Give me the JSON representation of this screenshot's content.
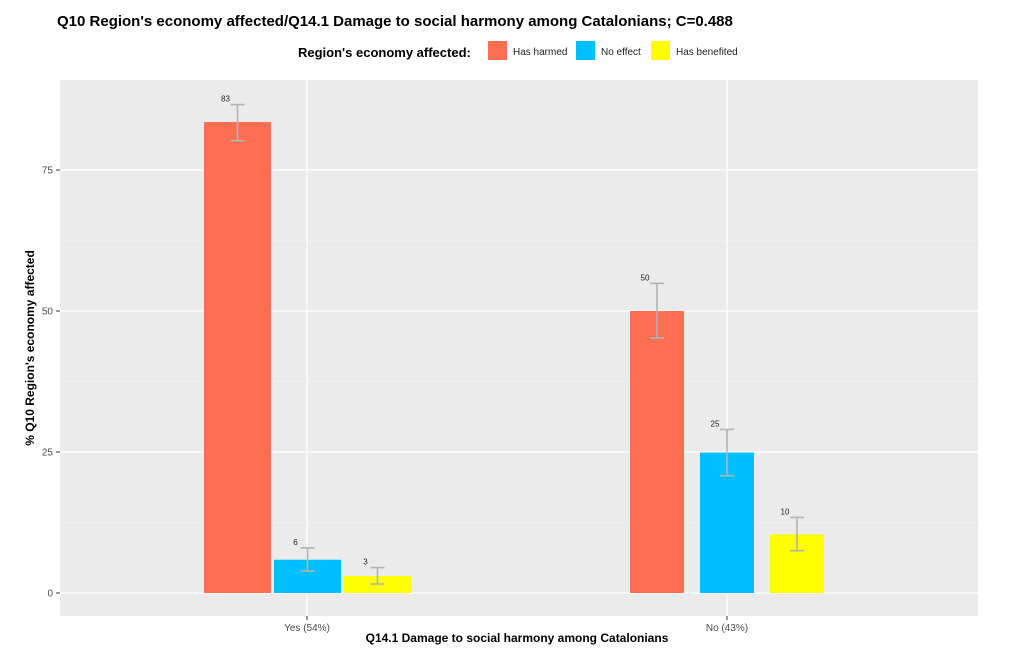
{
  "chart_data": {
    "type": "bar",
    "title": "Q10 Region's economy affected/Q14.1 Damage to social harmony among Catalonians; C=0.488",
    "xlabel": "Q14.1 Damage to social harmony among Catalonians",
    "ylabel": "% Q10 Region's economy affected",
    "legend_title": "Region's economy affected:",
    "legend_position": "top",
    "grid": true,
    "ylim": [
      0,
      90
    ],
    "yticks": [
      0,
      25,
      50,
      75
    ],
    "categories": [
      "Yes (54%)",
      "No (43%)"
    ],
    "series": [
      {
        "name": "Has harmed",
        "color": "#ff6e50",
        "values": [
          83.5,
          50.0
        ],
        "labels": [
          "83",
          "50"
        ],
        "err_low": [
          80.2,
          45.2
        ],
        "err_high": [
          86.6,
          54.9
        ]
      },
      {
        "name": "No effect",
        "color": "#00bfff",
        "values": [
          5.9,
          24.9
        ],
        "labels": [
          "6",
          "25"
        ],
        "err_low": [
          3.9,
          20.8
        ],
        "err_high": [
          8.0,
          29.0
        ]
      },
      {
        "name": "Has benefited",
        "color": "#ffff00",
        "values": [
          3.0,
          10.4
        ],
        "labels": [
          "3",
          "10"
        ],
        "err_low": [
          1.6,
          7.5
        ],
        "err_high": [
          4.5,
          13.4
        ]
      }
    ]
  }
}
